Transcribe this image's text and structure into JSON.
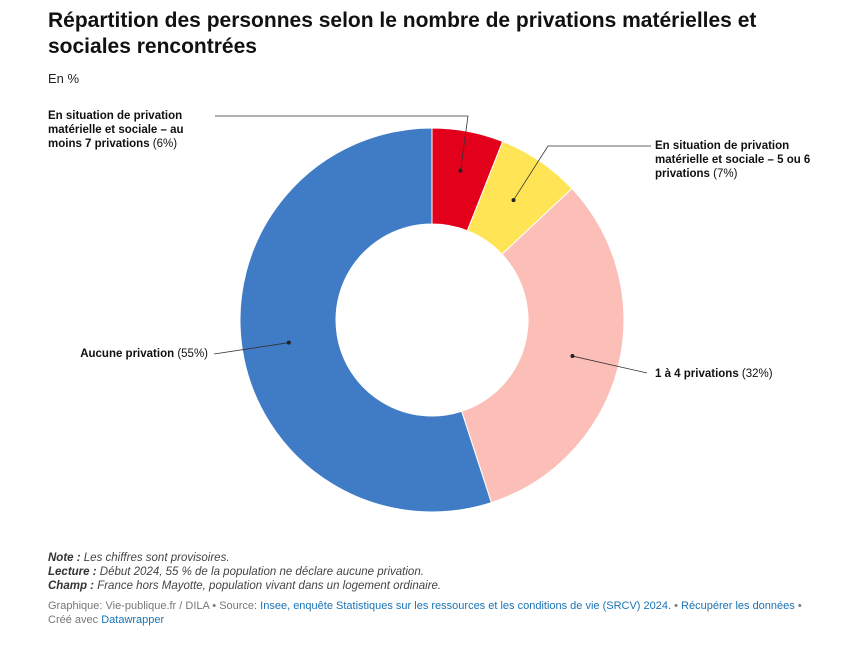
{
  "title": "Répartition des personnes selon le nombre de privations matérielles et sociales rencontrées",
  "subtitle": "En %",
  "chart_data": {
    "type": "pie",
    "donut": true,
    "categories": [
      "En situation de privation matérielle et sociale – au moins 7 privations",
      "En situation de privation matérielle et sociale – 5 ou 6 privations",
      "1 à 4 privations",
      "Aucune privation"
    ],
    "values": [
      6,
      7,
      32,
      55
    ],
    "value_labels": [
      "(6%)",
      "(7%)",
      "(32%)",
      "(55%)"
    ],
    "colors": [
      "#e3001b",
      "#ffe556",
      "#fcbfb7",
      "#407cc6"
    ],
    "label_lines": [
      [
        "En situation de privation",
        "matérielle et sociale – au",
        "moins 7 privations"
      ],
      [
        "En situation de privation",
        "matérielle et sociale – 5 ou 6",
        "privations"
      ],
      [
        "1 à 4 privations"
      ],
      [
        "Aucune privation"
      ]
    ]
  },
  "notes": {
    "note_label": "Note :",
    "note_text": " Les chiffres sont provisoires.",
    "lecture_label": "Lecture :",
    "lecture_text": " Début 2024, 55 % de la population ne déclare aucune privation.",
    "champ_label": "Champ :",
    "champ_text": " France hors Mayotte, population vivant dans un logement ordinaire."
  },
  "source": {
    "prefix": "Graphique: Vie-publique.fr / DILA • Source: ",
    "source_link": "Insee, enquête Statistiques sur les ressources et les conditions de vie (SRCV) 2024.",
    "separator": " • ",
    "download_link": "Récupérer les données",
    "created_with": " • Créé avec ",
    "tool_link": "Datawrapper"
  }
}
